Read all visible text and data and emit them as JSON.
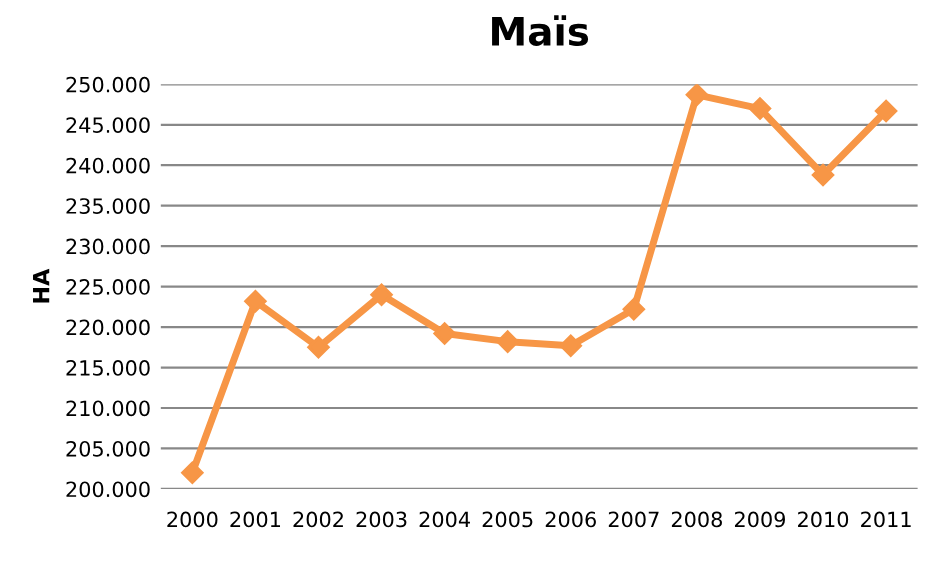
{
  "chart_data": {
    "type": "line",
    "title": "Maïs",
    "ylabel": "HA",
    "categories": [
      "2000",
      "2001",
      "2002",
      "2003",
      "2004",
      "2005",
      "2006",
      "2007",
      "2008",
      "2009",
      "2010",
      "2011"
    ],
    "series": [
      {
        "color": "#f79646",
        "values": [
          202000,
          223200,
          217500,
          224000,
          219200,
          218200,
          217700,
          222200,
          248700,
          247000,
          238800,
          246700
        ]
      }
    ],
    "ylim": [
      200000,
      250000
    ],
    "yticks": [
      {
        "value": 200000,
        "label": "200.000"
      },
      {
        "value": 205000,
        "label": "205.000"
      },
      {
        "value": 210000,
        "label": "210.000"
      },
      {
        "value": 215000,
        "label": "215.000"
      },
      {
        "value": 220000,
        "label": "220.000"
      },
      {
        "value": 225000,
        "label": "225.000"
      },
      {
        "value": 230000,
        "label": "230.000"
      },
      {
        "value": 235000,
        "label": "235.000"
      },
      {
        "value": 240000,
        "label": "240.000"
      },
      {
        "value": 245000,
        "label": "245.000"
      },
      {
        "value": 250000,
        "label": "250.000"
      }
    ],
    "grid": "y",
    "marker": "diamond",
    "line_style": "solid"
  }
}
